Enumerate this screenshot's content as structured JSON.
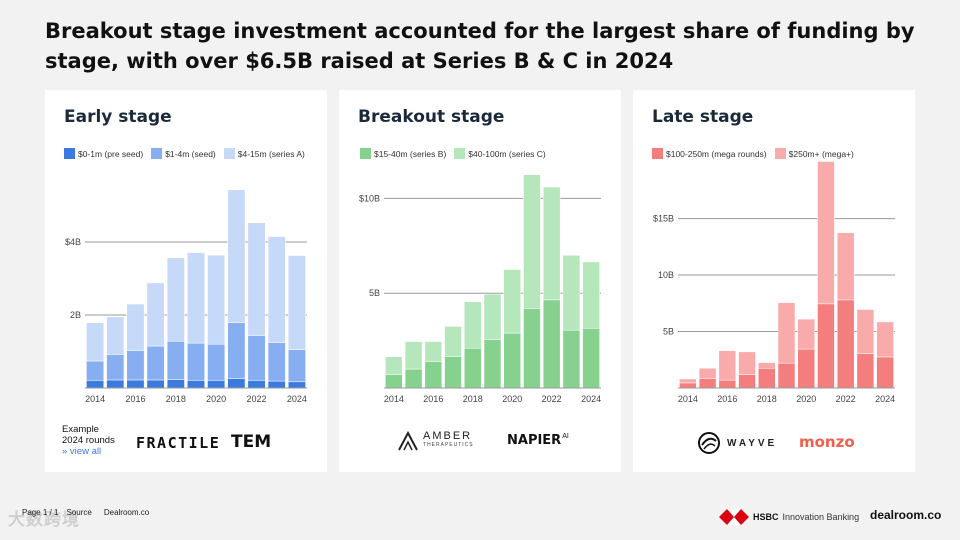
{
  "page": {
    "title": "Breakout stage investment accounted for the largest share of funding by stage, with over $6.5B raised at Series B & C in 2024"
  },
  "panels": [
    {
      "title": "Early stage",
      "legend": [
        "$0-1m (pre seed)",
        "$1-4m (seed)",
        "$4-15m (series A)"
      ],
      "logos": [
        "FRACTILE",
        "TEM"
      ],
      "example_label_1": "Example",
      "example_label_2": "2024 rounds",
      "view_all": "» view all"
    },
    {
      "title": "Breakout stage",
      "legend": [
        "$15-40m (series B)",
        "$40-100m (series C)"
      ],
      "logos": [
        "AMBER",
        "THERAPEUTICS",
        "NAPIER",
        "AI"
      ]
    },
    {
      "title": "Late stage",
      "legend": [
        "$100-250m (mega rounds)",
        "$250m+ (mega+)"
      ],
      "logos": [
        "WAYVE",
        "monzo"
      ]
    }
  ],
  "footer": {
    "page_label": "Page 1 / 1",
    "source_label": "Source",
    "source_value": "Dealroom.co",
    "watermark": "大数跨境",
    "hsbc_name": "HSBC",
    "hsbc_label": "Innovation Banking",
    "dealroom_label": "dealroom.co"
  },
  "chart_data": [
    {
      "type": "bar",
      "stacked": true,
      "title": "Early stage",
      "categories": [
        "2014",
        "2015",
        "2016",
        "2017",
        "2018",
        "2019",
        "2020",
        "2021",
        "2022",
        "2023",
        "2024"
      ],
      "x_tick_labels": [
        "2014",
        "2016",
        "2018",
        "2020",
        "2022",
        "2024"
      ],
      "y_tick_labels": [
        "2B",
        "$4B"
      ],
      "y_ticks": [
        2,
        4
      ],
      "ylim": [
        0,
        5.7
      ],
      "unit": "B",
      "series": [
        {
          "name": "$0-1m (pre seed)",
          "color": "#3b7be0",
          "values": [
            0.21,
            0.22,
            0.22,
            0.22,
            0.23,
            0.21,
            0.21,
            0.26,
            0.21,
            0.19,
            0.17
          ]
        },
        {
          "name": "$1-4m (seed)",
          "color": "#87aef0",
          "values": [
            0.53,
            0.7,
            0.81,
            0.93,
            1.05,
            1.02,
            0.99,
            1.53,
            1.23,
            1.05,
            0.88
          ]
        },
        {
          "name": "$4-15m (series A)",
          "color": "#c7d9f8",
          "values": [
            1.05,
            1.03,
            1.27,
            1.73,
            2.29,
            2.48,
            2.44,
            3.64,
            3.09,
            2.91,
            2.58
          ]
        }
      ]
    },
    {
      "type": "bar",
      "stacked": true,
      "title": "Breakout stage",
      "categories": [
        "2014",
        "2015",
        "2016",
        "2017",
        "2018",
        "2019",
        "2020",
        "2021",
        "2022",
        "2023",
        "2024"
      ],
      "x_tick_labels": [
        "2014",
        "2016",
        "2018",
        "2020",
        "2022",
        "2024"
      ],
      "y_tick_labels": [
        "5B",
        "$10B"
      ],
      "y_ticks": [
        5,
        10
      ],
      "ylim": [
        0,
        11.5
      ],
      "unit": "B",
      "series": [
        {
          "name": "$15-40m (series B)",
          "color": "#86d18e",
          "values": [
            0.7,
            1.0,
            1.4,
            1.65,
            2.1,
            2.55,
            2.9,
            4.2,
            4.65,
            3.05,
            3.15
          ]
        },
        {
          "name": "$40-100m (series C)",
          "color": "#b6e6bb",
          "values": [
            0.95,
            1.45,
            1.05,
            1.6,
            2.45,
            2.4,
            3.35,
            7.05,
            5.95,
            3.95,
            3.5
          ]
        }
      ]
    },
    {
      "type": "bar",
      "stacked": true,
      "title": "Late stage",
      "categories": [
        "2014",
        "2015",
        "2016",
        "2017",
        "2018",
        "2019",
        "2020",
        "2021",
        "2022",
        "2023",
        "2024"
      ],
      "x_tick_labels": [
        "2014",
        "2016",
        "2018",
        "2020",
        "2022",
        "2024"
      ],
      "y_tick_labels": [
        "5B",
        "10B",
        "$15B"
      ],
      "y_ticks": [
        5,
        10,
        15
      ],
      "ylim": [
        0,
        19.3
      ],
      "unit": "B",
      "series": [
        {
          "name": "$100-250m (mega rounds)",
          "color": "#f47d7d",
          "values": [
            0.45,
            0.85,
            0.7,
            1.2,
            1.75,
            2.2,
            3.45,
            7.45,
            7.8,
            3.05,
            2.75
          ]
        },
        {
          "name": "$250m+ (mega+)",
          "color": "#f9aaaa",
          "values": [
            0.35,
            0.9,
            2.6,
            2.0,
            0.5,
            5.35,
            2.65,
            12.6,
            5.95,
            3.9,
            3.1
          ]
        }
      ]
    }
  ]
}
